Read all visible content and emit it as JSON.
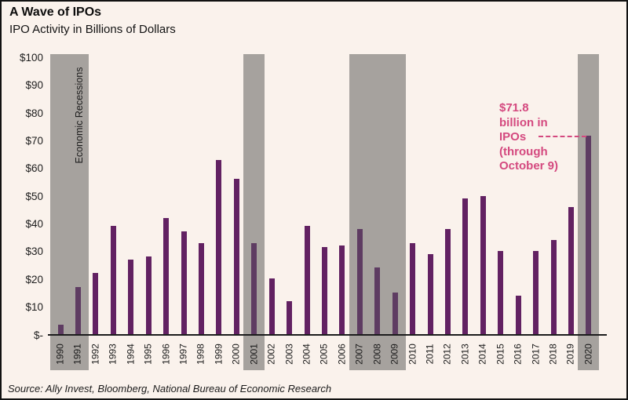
{
  "title": "A Wave of IPOs",
  "subtitle": "IPO Activity in Billions of Dollars",
  "source": "Source: Ally Invest, Bloomberg, National Bureau of Economic Research",
  "recession_band_label": "Economic Recessions",
  "annotation": {
    "lines": [
      "$71.8",
      "billion in",
      "IPOs",
      "(through",
      "October 9)"
    ],
    "color": "#d4497f",
    "points_to_year": 2020
  },
  "colors": {
    "background": "#faf2ec",
    "bar": "#622162",
    "bar_in_recession": "#5e3c62",
    "recession_band": "#a6a29e",
    "annotation_pink": "#d4497f",
    "text": "#1a1a1a"
  },
  "y_axis": {
    "tick_labels": [
      "$100",
      "$90",
      "$80",
      "$70",
      "$60",
      "$50",
      "$40",
      "$30",
      "$20",
      "$10",
      "$-"
    ],
    "min": 0,
    "max": 100
  },
  "chart_data": {
    "type": "bar",
    "title": "A Wave of IPOs",
    "subtitle": "IPO Activity in Billions of Dollars",
    "unit": "billions of dollars",
    "categories": [
      1990,
      1991,
      1992,
      1993,
      1994,
      1995,
      1996,
      1997,
      1998,
      1999,
      2000,
      2001,
      2002,
      2003,
      2004,
      2005,
      2006,
      2007,
      2008,
      2009,
      2010,
      2011,
      2012,
      2013,
      2014,
      2015,
      2016,
      2017,
      2018,
      2019,
      2020
    ],
    "values": [
      3.5,
      17,
      22,
      39,
      27,
      28,
      42,
      37,
      33,
      63,
      56,
      33,
      20,
      12,
      39,
      31.5,
      32,
      38,
      24,
      15,
      33,
      29,
      38,
      49,
      50,
      30,
      14,
      30,
      34,
      46,
      71.8
    ],
    "ylim": [
      0,
      100
    ],
    "grid": false,
    "legend": false,
    "recession_year_ranges": [
      [
        1990,
        1991
      ],
      [
        2001,
        2001
      ],
      [
        2007,
        2009
      ],
      [
        2020,
        2020
      ]
    ],
    "annotation_value": 71.8
  }
}
